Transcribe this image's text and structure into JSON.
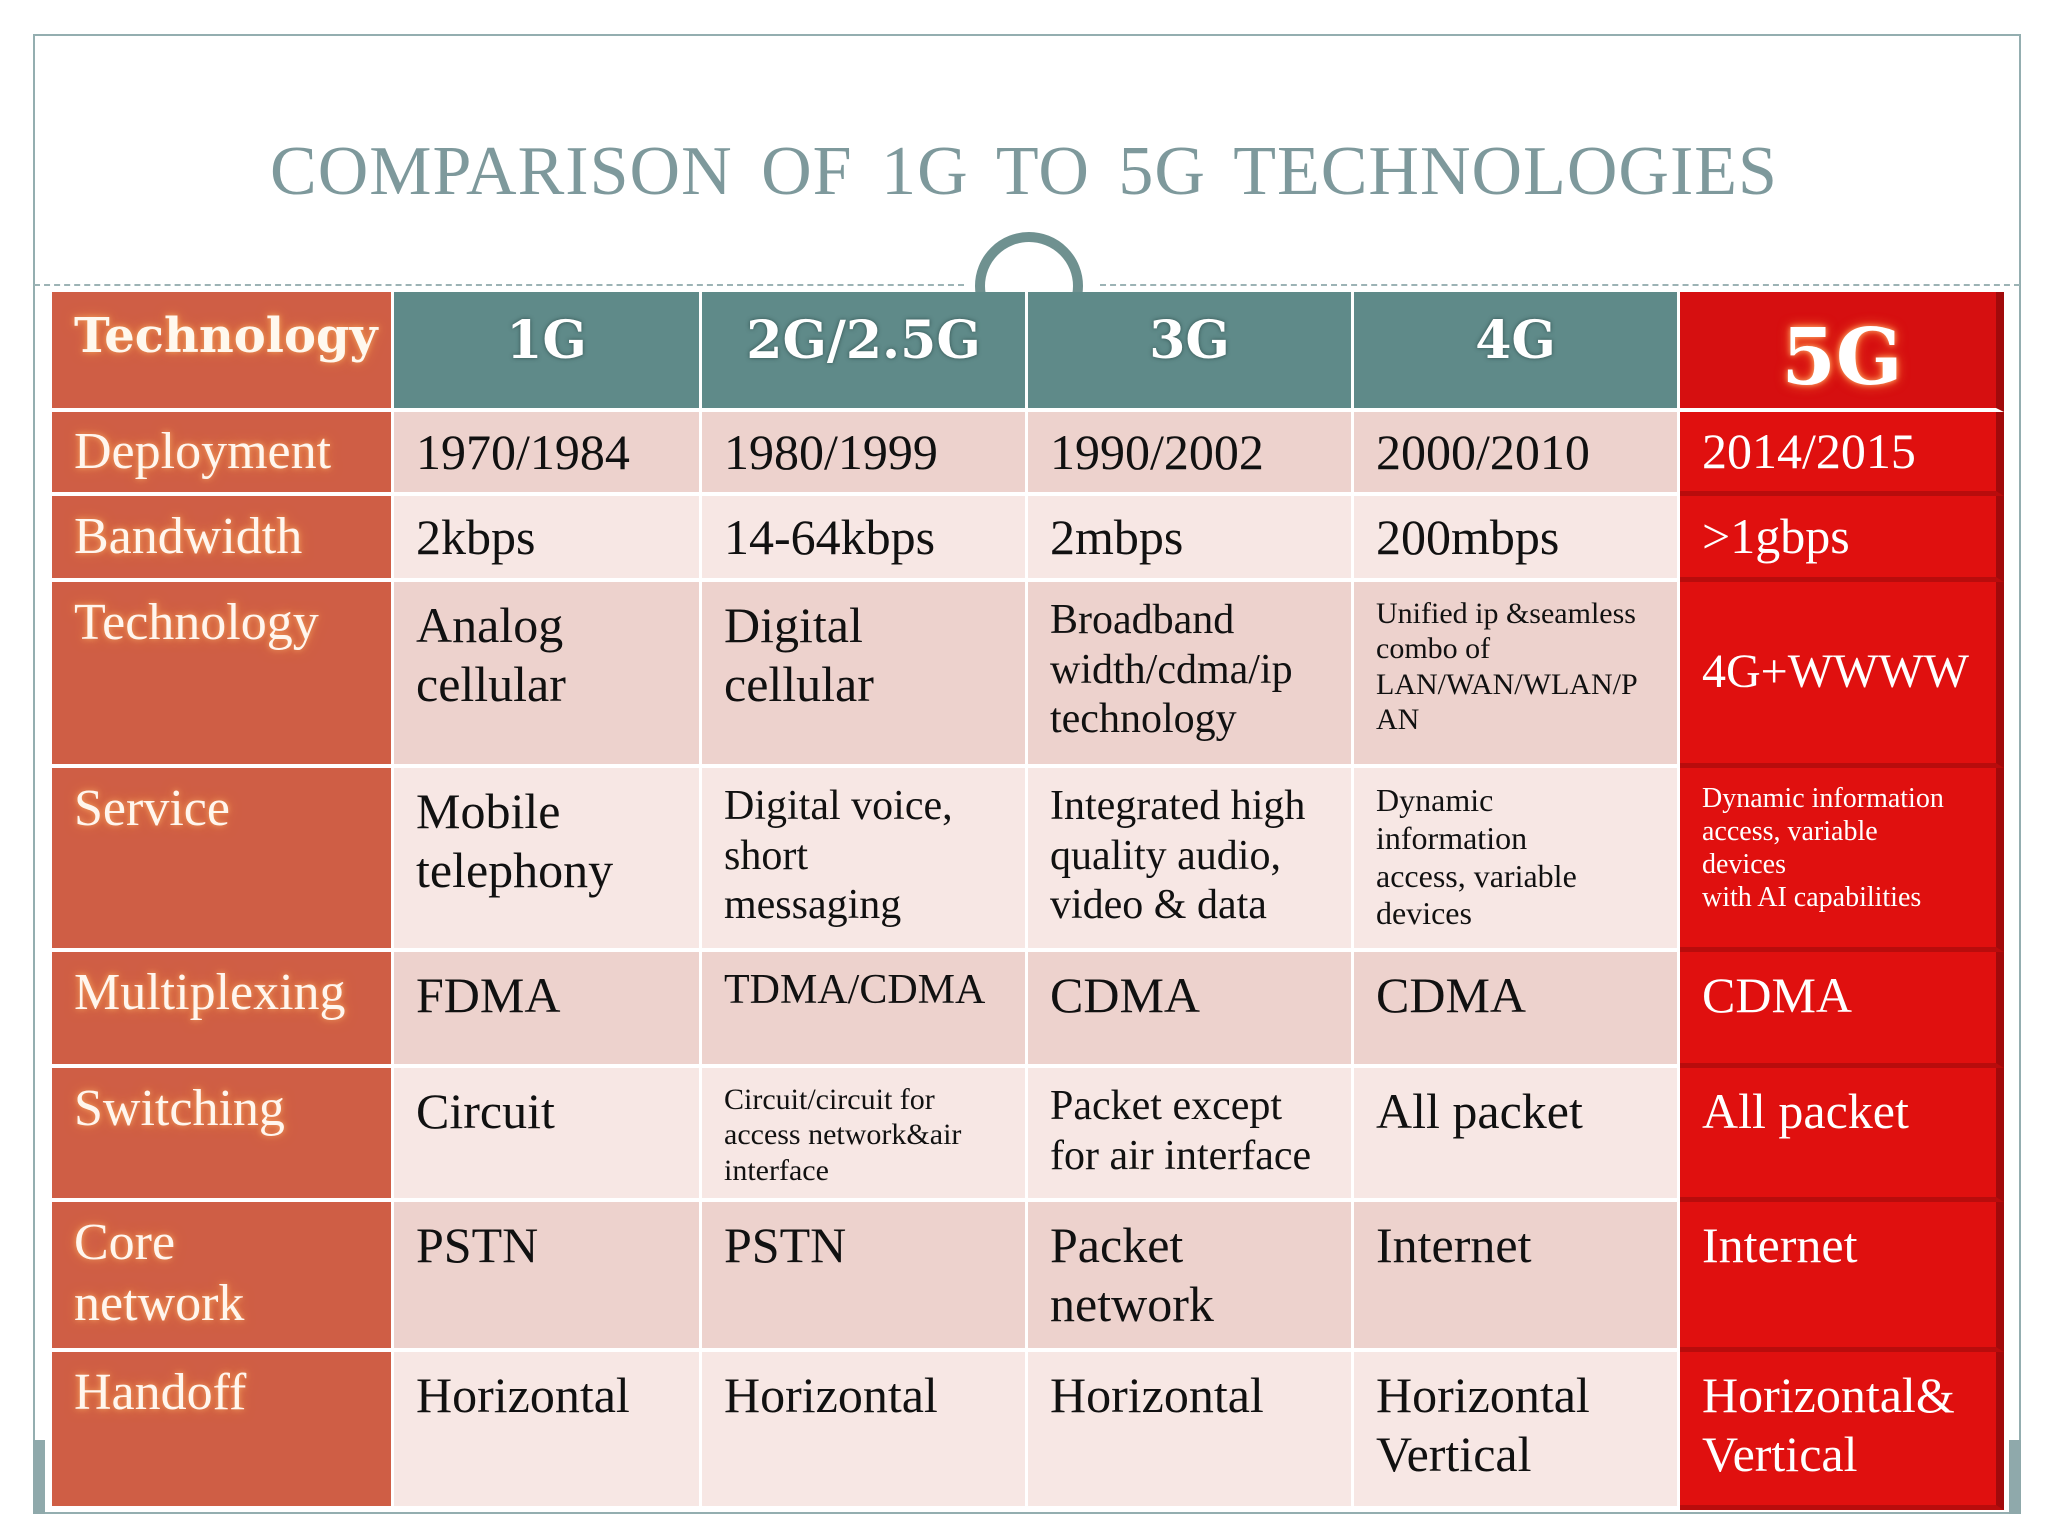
{
  "slide": {
    "title": "COMPARISON  OF  1G TO 5G  TECHNOLOGIES"
  },
  "table": {
    "corner_label": "Technology",
    "columns": [
      "1G",
      "2G/2.5G",
      "3G",
      "4G",
      "5G"
    ],
    "rows": [
      {
        "label": "Deployment",
        "cells": [
          "1970/1984",
          "1980/1999",
          "1990/2002",
          "2000/2010",
          "2014/2015"
        ]
      },
      {
        "label": "Bandwidth",
        "cells": [
          "2kbps",
          "14-64kbps",
          "2mbps",
          "200mbps",
          ">1gbps"
        ]
      },
      {
        "label": "Technology",
        "cells": [
          "Analog\ncellular",
          "Digital\ncellular",
          "Broadband\nwidth/cdma/ip\ntechnology",
          "Unified ip &seamless\ncombo of\nLAN/WAN/WLAN/P\nAN",
          "4G+WWWW"
        ]
      },
      {
        "label": "Service",
        "cells": [
          "Mobile\ntelephony",
          "Digital voice,\nshort\nmessaging",
          "Integrated high\nquality audio,\nvideo & data",
          "Dynamic\ninformation\naccess, variable\ndevices",
          "Dynamic information\naccess, variable\ndevices\nwith AI capabilities"
        ]
      },
      {
        "label": "Multiplexing",
        "cells": [
          "FDMA",
          "TDMA/CDMA",
          "CDMA",
          "CDMA",
          "CDMA"
        ]
      },
      {
        "label": "Switching",
        "cells": [
          "Circuit",
          "Circuit/circuit for\naccess network&air\ninterface",
          "Packet except\nfor air interface",
          "All packet",
          "All packet"
        ]
      },
      {
        "label": "Core\nnetwork",
        "cells": [
          "PSTN",
          "PSTN",
          "Packet\nnetwork",
          "Internet",
          "Internet"
        ]
      },
      {
        "label": "Handoff",
        "cells": [
          "Horizontal",
          "Horizontal",
          "Horizontal",
          "Horizontal\nVertical",
          "Horizontal&\nVertical"
        ]
      }
    ]
  },
  "colors": {
    "title": "#7e999c",
    "header_teal": "#5f8a89",
    "row_header_orange": "#cf5e45",
    "highlight_red": "#e0100f",
    "cell_dark": "#edd2cd",
    "cell_light": "#f7e7e4"
  }
}
